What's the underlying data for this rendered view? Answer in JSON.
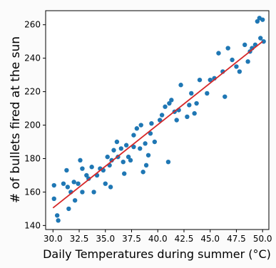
{
  "chart_data": {
    "type": "scatter",
    "title": "",
    "xlabel": "Daily Temperatures during summer (°C)",
    "ylabel": "# of bullets fired at the sun",
    "xlim": [
      29.3,
      50.6
    ],
    "ylim": [
      137.6,
      268.4
    ],
    "xticks": [
      "30.0",
      "32.5",
      "35.0",
      "37.5",
      "40.0",
      "42.5",
      "45.0",
      "47.5",
      "50.0"
    ],
    "yticks": [
      "140",
      "160",
      "180",
      "200",
      "220",
      "240",
      "260"
    ],
    "grid": false,
    "legend": "none",
    "series": [
      {
        "marker_color": "#1f77b4",
        "points": [
          [
            30.1,
            164
          ],
          [
            30.1,
            156
          ],
          [
            30.4,
            146
          ],
          [
            30.5,
            143
          ],
          [
            31.0,
            165
          ],
          [
            31.3,
            173
          ],
          [
            31.4,
            163
          ],
          [
            31.5,
            150
          ],
          [
            31.7,
            160
          ],
          [
            32.0,
            166
          ],
          [
            32.1,
            155
          ],
          [
            32.4,
            165
          ],
          [
            32.6,
            179
          ],
          [
            32.8,
            174
          ],
          [
            32.8,
            160
          ],
          [
            33.2,
            170
          ],
          [
            33.4,
            168
          ],
          [
            33.7,
            175
          ],
          [
            33.9,
            160
          ],
          [
            34.2,
            170
          ],
          [
            34.5,
            174
          ],
          [
            34.8,
            173
          ],
          [
            35.0,
            165
          ],
          [
            35.2,
            181
          ],
          [
            35.4,
            176
          ],
          [
            35.5,
            163
          ],
          [
            35.6,
            179
          ],
          [
            35.8,
            185
          ],
          [
            36.1,
            190
          ],
          [
            36.2,
            181
          ],
          [
            36.5,
            186
          ],
          [
            36.7,
            178
          ],
          [
            36.8,
            171
          ],
          [
            37.0,
            188
          ],
          [
            37.2,
            181
          ],
          [
            37.4,
            179
          ],
          [
            37.7,
            194
          ],
          [
            37.7,
            187
          ],
          [
            38.0,
            198
          ],
          [
            38.3,
            186
          ],
          [
            38.4,
            200
          ],
          [
            38.6,
            172
          ],
          [
            38.8,
            189
          ],
          [
            38.9,
            176
          ],
          [
            39.1,
            182
          ],
          [
            39.3,
            195
          ],
          [
            39.4,
            201
          ],
          [
            39.7,
            190
          ],
          [
            40.2,
            203
          ],
          [
            40.4,
            206
          ],
          [
            40.7,
            211
          ],
          [
            41.0,
            178
          ],
          [
            41.1,
            213
          ],
          [
            41.3,
            215
          ],
          [
            41.6,
            208
          ],
          [
            41.8,
            203
          ],
          [
            42.0,
            209
          ],
          [
            42.2,
            224
          ],
          [
            42.8,
            205
          ],
          [
            43.0,
            212
          ],
          [
            43.2,
            219
          ],
          [
            43.5,
            207
          ],
          [
            43.7,
            213
          ],
          [
            44.0,
            227
          ],
          [
            44.7,
            219
          ],
          [
            45.0,
            227
          ],
          [
            45.4,
            228
          ],
          [
            45.8,
            243
          ],
          [
            46.2,
            232
          ],
          [
            46.4,
            217
          ],
          [
            46.7,
            246
          ],
          [
            47.1,
            239
          ],
          [
            47.5,
            235
          ],
          [
            47.8,
            232
          ],
          [
            48.3,
            248
          ],
          [
            48.6,
            238
          ],
          [
            48.8,
            244
          ],
          [
            49.0,
            246
          ],
          [
            49.3,
            248
          ],
          [
            49.5,
            262
          ],
          [
            49.7,
            264
          ],
          [
            49.8,
            252
          ],
          [
            50.0,
            263
          ],
          [
            50.1,
            250
          ]
        ]
      }
    ],
    "fit_line": {
      "color": "#d62728",
      "x": [
        30.0,
        50.0
      ],
      "y": [
        150.5,
        250.0
      ]
    }
  }
}
